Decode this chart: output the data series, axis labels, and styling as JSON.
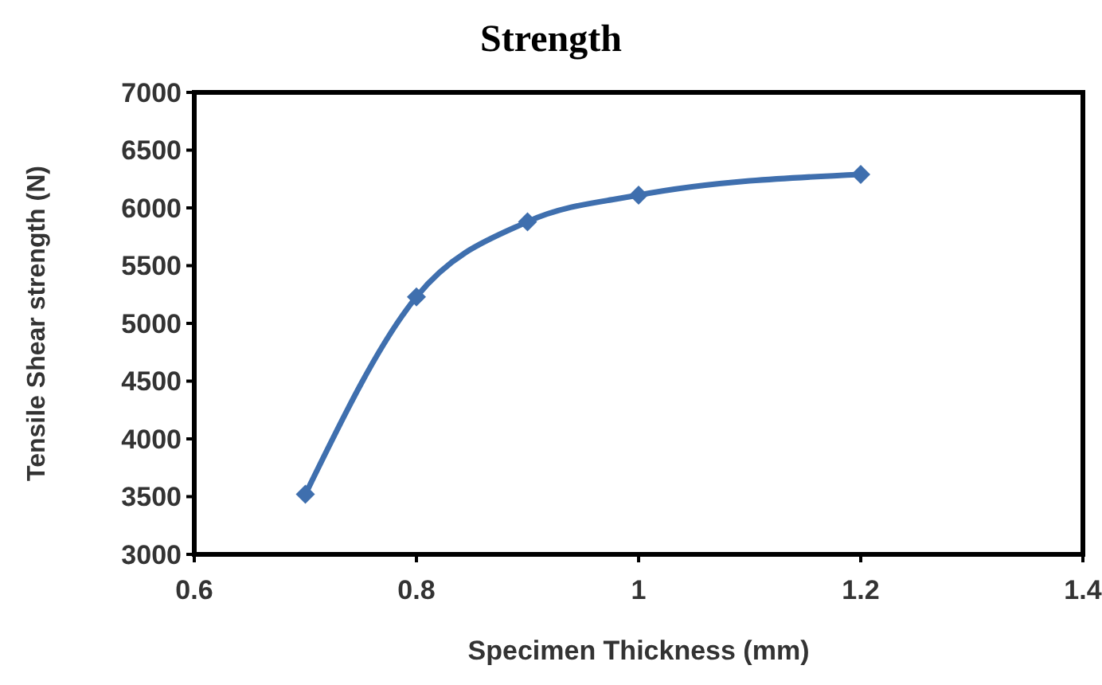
{
  "chart_data": {
    "type": "line",
    "title": "Strength",
    "xlabel": "Specimen Thickness (mm)",
    "ylabel": "Tensile Shear strength (N)",
    "x": [
      0.7,
      0.8,
      0.9,
      1,
      1.2
    ],
    "series": [
      {
        "color": "#3f6fae",
        "values": [
          3520,
          5230,
          5880,
          6110,
          6290
        ]
      }
    ],
    "xlim": [
      0.6,
      1.4
    ],
    "xticks": [
      0.6,
      0.8,
      1,
      1.2,
      1.4
    ],
    "ylim": [
      3000,
      7000
    ],
    "yticks": [
      3000,
      3500,
      4000,
      4500,
      5000,
      5500,
      6000,
      6500,
      7000
    ],
    "marker": "diamond",
    "line_style": "solid"
  }
}
